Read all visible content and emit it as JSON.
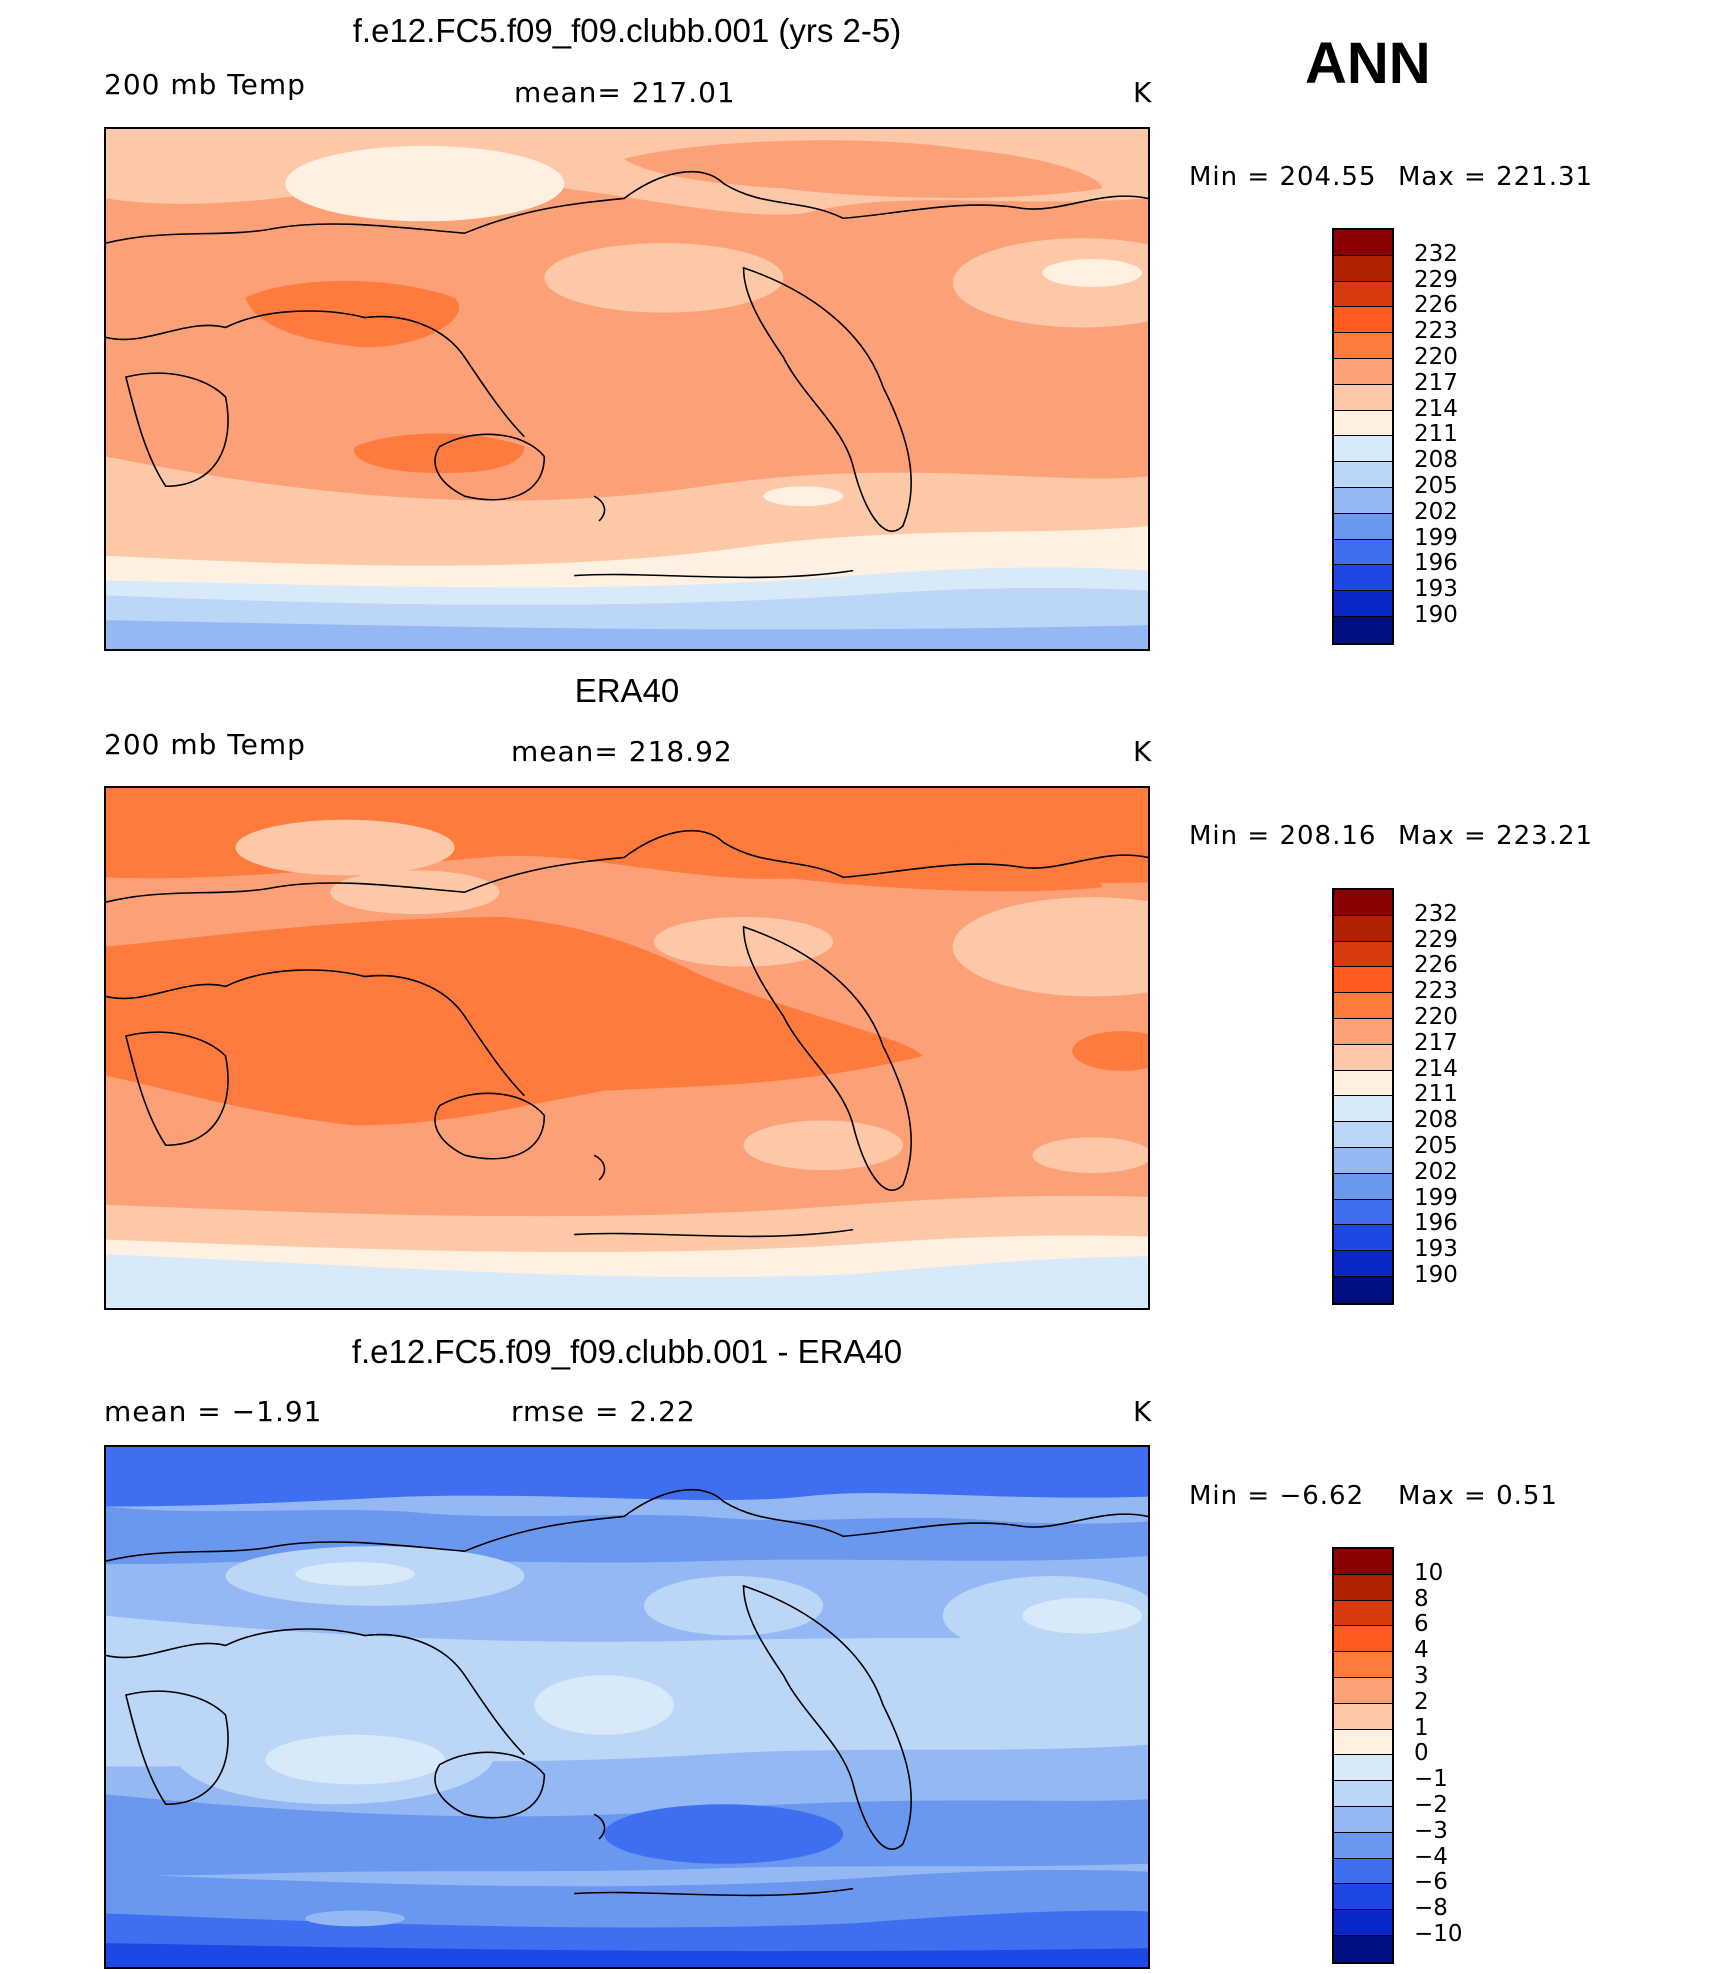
{
  "season": "ANN",
  "units": "K",
  "panels": [
    {
      "title": "f.e12.FC5.f09_f09.clubb.001 (yrs 2-5)",
      "left_label": "200 mb Temp",
      "center_label": "mean= 217.01",
      "right_label": "K",
      "min_label": "Min = 204.55",
      "max_label": "Max = 221.31",
      "field": "model",
      "colorbar": "abs"
    },
    {
      "title": "ERA40",
      "left_label": "200 mb Temp",
      "center_label": "mean= 218.92",
      "right_label": "K",
      "min_label": "Min = 208.16",
      "max_label": "Max = 223.21",
      "field": "obs",
      "colorbar": "abs"
    },
    {
      "title": "f.e12.FC5.f09_f09.clubb.001 - ERA40",
      "left_label": "mean = −1.91",
      "center_label": "rmse = 2.22",
      "right_label": "K",
      "min_label": "Min = −6.62",
      "max_label": "Max = 0.51",
      "field": "diff",
      "colorbar": "diff"
    }
  ],
  "colorbars": {
    "abs": {
      "levels": [
        "232",
        "229",
        "226",
        "223",
        "220",
        "217",
        "214",
        "211",
        "208",
        "205",
        "202",
        "199",
        "196",
        "193",
        "190"
      ],
      "colors": [
        "#8b0000",
        "#b22200",
        "#d93a10",
        "#ff5a1f",
        "#ff7a3d",
        "#fca077",
        "#fdc8a8",
        "#fff0e2",
        "#d8eafa",
        "#bcd6f8",
        "#94b8f3",
        "#6a98ef",
        "#3e6ff0",
        "#1e48e6",
        "#0a26c8",
        "#001080"
      ]
    },
    "diff": {
      "levels": [
        "10",
        "8",
        "6",
        "4",
        "3",
        "2",
        "1",
        "0",
        "−1",
        "−2",
        "−3",
        "−4",
        "−6",
        "−8",
        "−10"
      ],
      "colors": [
        "#8b0000",
        "#b22200",
        "#d93a10",
        "#ff5a1f",
        "#ff7a3d",
        "#fca077",
        "#fdc8a8",
        "#fff0e2",
        "#d8eafa",
        "#bcd6f8",
        "#94b8f3",
        "#6a98ef",
        "#3e6ff0",
        "#1e48e6",
        "#0a26c8",
        "#001080"
      ]
    }
  },
  "chart_data": {
    "type": "contour_map",
    "projection": "cylindrical equidistant, Pacific-centered",
    "variable": "200 mb Temp",
    "units": "K",
    "season": "ANN",
    "panels": [
      {
        "name": "f.e12.FC5.f09_f09.clubb.001 (yrs 2-5)",
        "mean": 217.01,
        "min": 204.55,
        "max": 221.31
      },
      {
        "name": "ERA40",
        "mean": 218.92,
        "min": 208.16,
        "max": 223.21
      },
      {
        "name": "f.e12.FC5.f09_f09.clubb.001 - ERA40",
        "mean": -1.91,
        "rmse": 2.22,
        "min": -6.62,
        "max": 0.51
      }
    ],
    "abs_contour_levels": [
      190,
      193,
      196,
      199,
      202,
      205,
      208,
      211,
      214,
      217,
      220,
      223,
      226,
      229,
      232
    ],
    "diff_contour_levels": [
      -10,
      -8,
      -6,
      -4,
      -3,
      -2,
      -1,
      0,
      1,
      2,
      3,
      4,
      6,
      8,
      10
    ]
  }
}
